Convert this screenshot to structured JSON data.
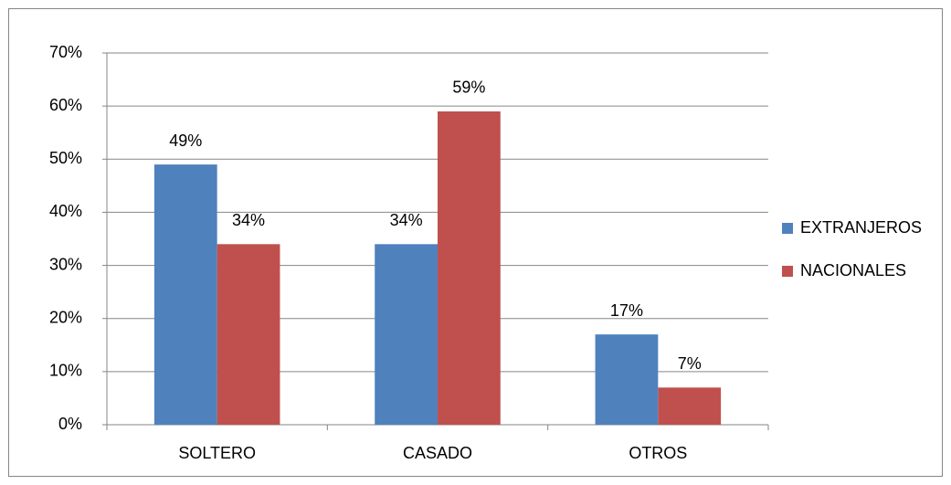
{
  "chart_data": {
    "type": "bar",
    "categories": [
      "SOLTERO",
      "CASADO",
      "OTROS"
    ],
    "series": [
      {
        "name": "EXTRANJEROS",
        "color": "#4f81bd",
        "values": [
          49,
          34,
          17
        ],
        "value_labels": [
          "49%",
          "34%",
          "17%"
        ]
      },
      {
        "name": "NACIONALES",
        "color": "#c0504d",
        "values": [
          34,
          59,
          7
        ],
        "value_labels": [
          "34%",
          "59%",
          "7%"
        ]
      }
    ],
    "ylim": [
      0,
      70
    ],
    "yticks": [
      {
        "value": 0,
        "label": "0%"
      },
      {
        "value": 10,
        "label": "10%"
      },
      {
        "value": 20,
        "label": "20%"
      },
      {
        "value": 30,
        "label": "30%"
      },
      {
        "value": 40,
        "label": "40%"
      },
      {
        "value": 50,
        "label": "50%"
      },
      {
        "value": 60,
        "label": "60%"
      },
      {
        "value": 70,
        "label": "70%"
      }
    ],
    "grid": true,
    "legend": "right"
  }
}
